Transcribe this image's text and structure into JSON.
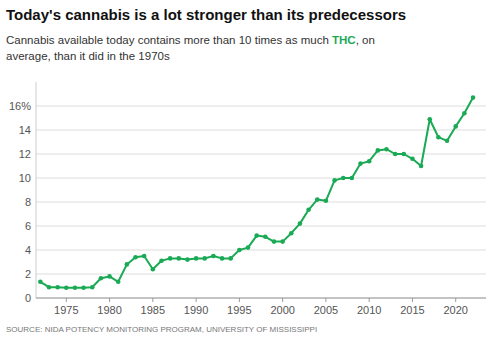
{
  "chart_data": {
    "type": "line",
    "title": "Today's cannabis is a lot stronger than its predecessors",
    "subtitle": [
      "Cannabis available today contains more than 10 times as much ",
      "THC",
      ", on",
      "average, than it did in the 1970s"
    ],
    "source": "SOURCE: NIDA POTENCY MONITORING PROGRAM, UNIVERSITY OF MISSISSIPPI",
    "x": [
      1972,
      1973,
      1974,
      1975,
      1976,
      1977,
      1978,
      1979,
      1980,
      1981,
      1982,
      1983,
      1984,
      1985,
      1986,
      1987,
      1988,
      1989,
      1990,
      1991,
      1992,
      1993,
      1994,
      1995,
      1996,
      1997,
      1998,
      1999,
      2000,
      2001,
      2002,
      2003,
      2004,
      2005,
      2006,
      2007,
      2008,
      2009,
      2010,
      2011,
      2012,
      2013,
      2014,
      2015,
      2016,
      2017,
      2018,
      2019,
      2020,
      2021,
      2022
    ],
    "values": [
      1.35,
      0.9,
      0.9,
      0.85,
      0.85,
      0.85,
      0.9,
      1.65,
      1.8,
      1.35,
      2.8,
      3.4,
      3.5,
      2.4,
      3.1,
      3.3,
      3.3,
      3.2,
      3.3,
      3.3,
      3.5,
      3.3,
      3.3,
      4.0,
      4.2,
      5.2,
      5.1,
      4.7,
      4.7,
      5.4,
      6.2,
      7.35,
      8.2,
      8.1,
      9.8,
      10.0,
      10.0,
      11.2,
      11.4,
      12.3,
      12.4,
      12.0,
      12.0,
      11.6,
      11.0,
      14.9,
      13.4,
      13.1,
      14.3,
      15.4,
      16.7
    ],
    "color": "#1aaa55",
    "marker": "circle",
    "xlim": [
      1971.5,
      2023.5
    ],
    "xticks": [
      1975,
      1980,
      1985,
      1990,
      1995,
      2000,
      2005,
      2010,
      2015,
      2020
    ],
    "ylim": [
      0,
      18
    ],
    "yticks": [
      0,
      2,
      4,
      6,
      8,
      10,
      12,
      14,
      {
        "value": 16,
        "label": "16%"
      }
    ],
    "grid": true
  }
}
